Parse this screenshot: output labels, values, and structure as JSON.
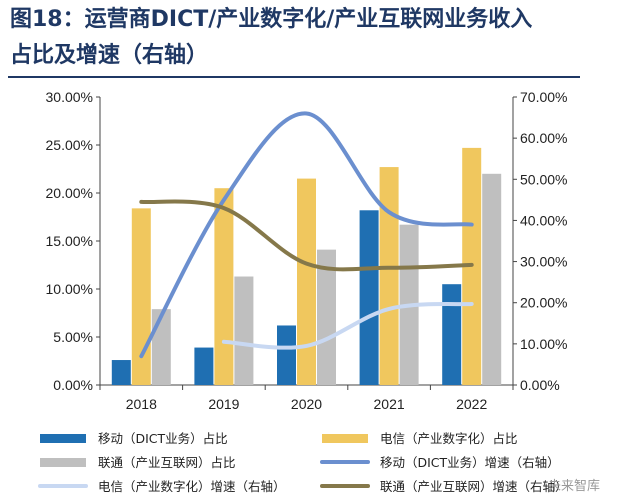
{
  "header": {
    "title_line1": "图18：运营商DICT/产业数字化/产业互联网业务收入",
    "title_line2": "占比及增速（右轴）"
  },
  "watermark": "未来智库",
  "chart_data": {
    "type": "bar",
    "categories": [
      "2018",
      "2019",
      "2020",
      "2021",
      "2022"
    ],
    "y_left": {
      "min": 0,
      "max": 30,
      "step": 5,
      "format": "percent2"
    },
    "y_right": {
      "min": 0,
      "max": 70,
      "step": 10,
      "format": "percent2"
    },
    "bar_series": [
      {
        "name": "移动（DICT业务）占比",
        "color": "#1f6fb2",
        "values": [
          2.6,
          3.9,
          6.2,
          18.2,
          10.5
        ]
      },
      {
        "name": "电信（产业数字化）占比",
        "color": "#f0c75e",
        "values": [
          18.4,
          20.5,
          21.5,
          22.7,
          24.7
        ]
      },
      {
        "name": "联通（产业互联网）占比",
        "color": "#bfbfbf",
        "values": [
          7.9,
          11.3,
          14.1,
          16.7,
          22.0
        ]
      }
    ],
    "line_series": [
      {
        "name": "移动（DICT业务）增速（右轴）",
        "color": "#6b8fcf",
        "axis": "right",
        "values": [
          7,
          45,
          66,
          42,
          39
        ]
      },
      {
        "name": "电信（产业数字化）增速（右轴）",
        "color": "#c8d8f2",
        "axis": "right",
        "values": [
          null,
          10.5,
          9.5,
          18.5,
          19.7
        ]
      },
      {
        "name": "联通（产业互联网）增速（右轴）",
        "color": "#85784a",
        "axis": "right",
        "values": [
          44.5,
          43,
          29.5,
          28.5,
          29.2
        ]
      }
    ],
    "legend_order": [
      "移动（DICT业务）占比",
      "电信（产业数字化）占比",
      "联通（产业互联网）占比",
      "移动（DICT业务）增速（右轴）",
      "电信（产业数字化）增速（右轴）",
      "联通（产业互联网）增速（右轴）"
    ]
  }
}
